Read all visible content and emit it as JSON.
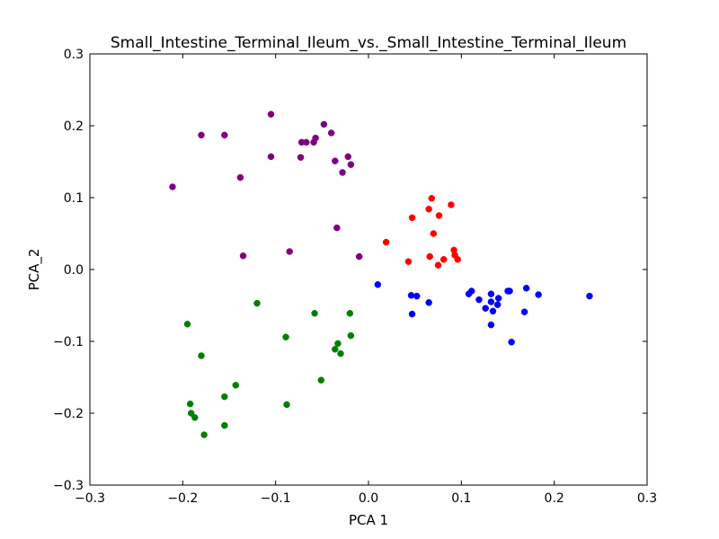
{
  "chart_data": {
    "type": "scatter",
    "title": "Small_Intestine_Terminal_Ileum_vs._Small_Intestine_Terminal_Ileum",
    "xlabel": "PCA 1",
    "ylabel": "PCA_2",
    "xlim": [
      -0.3,
      0.3
    ],
    "ylim": [
      -0.3,
      0.3
    ],
    "xticks": [
      -0.3,
      -0.2,
      -0.1,
      0.0,
      0.1,
      0.2,
      0.3
    ],
    "yticks": [
      -0.3,
      -0.2,
      -0.1,
      0.0,
      0.1,
      0.2,
      0.3
    ],
    "xtick_labels": [
      "−0.3",
      "−0.2",
      "−0.1",
      "0.0",
      "0.1",
      "0.2",
      "0.3"
    ],
    "ytick_labels": [
      "−0.3",
      "−0.2",
      "−0.1",
      "0.0",
      "0.1",
      "0.2",
      "0.3"
    ],
    "grid": false,
    "legend": "none",
    "series": [
      {
        "color": "#800080",
        "points": [
          [
            -0.211,
            0.115
          ],
          [
            -0.18,
            0.187
          ],
          [
            -0.155,
            0.187
          ],
          [
            -0.138,
            0.128
          ],
          [
            -0.105,
            0.216
          ],
          [
            -0.105,
            0.157
          ],
          [
            -0.072,
            0.177
          ],
          [
            -0.067,
            0.177
          ],
          [
            -0.073,
            0.156
          ],
          [
            -0.059,
            0.177
          ],
          [
            -0.057,
            0.183
          ],
          [
            -0.048,
            0.202
          ],
          [
            -0.04,
            0.19
          ],
          [
            -0.036,
            0.151
          ],
          [
            -0.022,
            0.157
          ],
          [
            -0.028,
            0.135
          ],
          [
            -0.019,
            0.146
          ],
          [
            -0.034,
            0.058
          ],
          [
            -0.085,
            0.025
          ],
          [
            -0.135,
            0.019
          ],
          [
            -0.01,
            0.018
          ]
        ]
      },
      {
        "color": "#ff0000",
        "points": [
          [
            0.068,
            0.099
          ],
          [
            0.089,
            0.09
          ],
          [
            0.047,
            0.072
          ],
          [
            0.065,
            0.084
          ],
          [
            0.076,
            0.075
          ],
          [
            0.07,
            0.05
          ],
          [
            0.019,
            0.038
          ],
          [
            0.092,
            0.027
          ],
          [
            0.066,
            0.018
          ],
          [
            0.093,
            0.02
          ],
          [
            0.096,
            0.014
          ],
          [
            0.081,
            0.014
          ],
          [
            0.043,
            0.011
          ],
          [
            0.075,
            0.006
          ]
        ]
      },
      {
        "color": "#0000ff",
        "points": [
          [
            0.01,
            -0.021
          ],
          [
            0.046,
            -0.036
          ],
          [
            0.052,
            -0.037
          ],
          [
            0.047,
            -0.062
          ],
          [
            0.065,
            -0.046
          ],
          [
            0.108,
            -0.034
          ],
          [
            0.111,
            -0.03
          ],
          [
            0.119,
            -0.042
          ],
          [
            0.126,
            -0.054
          ],
          [
            0.132,
            -0.034
          ],
          [
            0.132,
            -0.045
          ],
          [
            0.134,
            -0.058
          ],
          [
            0.14,
            -0.04
          ],
          [
            0.139,
            -0.049
          ],
          [
            0.132,
            -0.077
          ],
          [
            0.15,
            -0.03
          ],
          [
            0.152,
            -0.03
          ],
          [
            0.154,
            -0.101
          ],
          [
            0.168,
            -0.059
          ],
          [
            0.17,
            -0.026
          ],
          [
            0.183,
            -0.035
          ],
          [
            0.238,
            -0.037
          ]
        ]
      },
      {
        "color": "#008000",
        "points": [
          [
            -0.195,
            -0.076
          ],
          [
            -0.12,
            -0.047
          ],
          [
            -0.18,
            -0.12
          ],
          [
            -0.058,
            -0.061
          ],
          [
            -0.089,
            -0.094
          ],
          [
            -0.02,
            -0.061
          ],
          [
            -0.019,
            -0.092
          ],
          [
            -0.033,
            -0.103
          ],
          [
            -0.036,
            -0.111
          ],
          [
            -0.03,
            -0.117
          ],
          [
            -0.051,
            -0.154
          ],
          [
            -0.143,
            -0.161
          ],
          [
            -0.155,
            -0.177
          ],
          [
            -0.088,
            -0.188
          ],
          [
            -0.192,
            -0.187
          ],
          [
            -0.191,
            -0.2
          ],
          [
            -0.187,
            -0.206
          ],
          [
            -0.155,
            -0.217
          ],
          [
            -0.177,
            -0.23
          ]
        ]
      }
    ]
  }
}
